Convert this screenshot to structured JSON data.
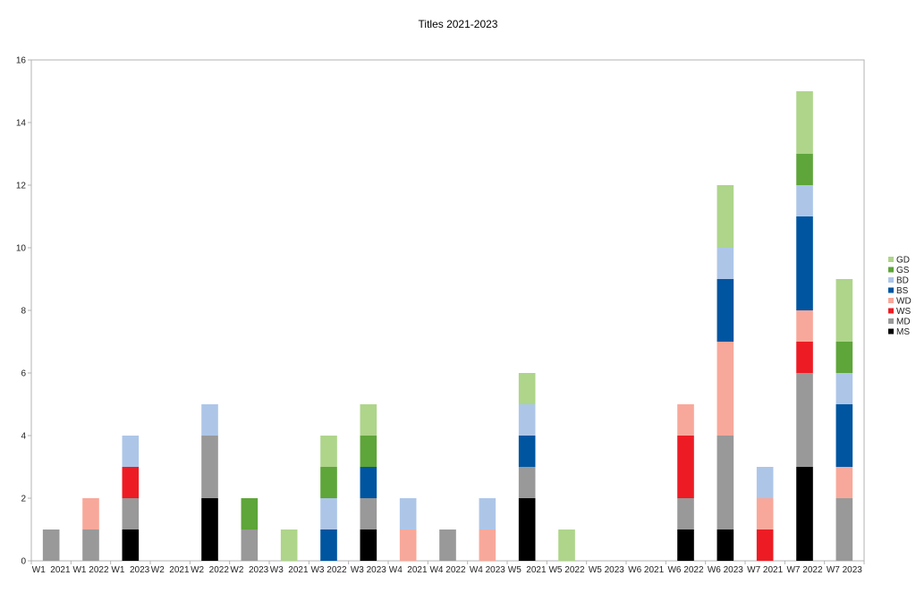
{
  "chart_data": {
    "type": "bar",
    "stacked": true,
    "title": "Titles 2021-2023",
    "xlabel": "",
    "ylabel": "",
    "ylim": [
      0,
      16
    ],
    "yticks": [
      0,
      2,
      4,
      6,
      8,
      10,
      12,
      14,
      16
    ],
    "grid": "horizontal-top-only",
    "legend_position": "right",
    "categories": [
      "W1  2021",
      "W1 2022",
      "W1  2023",
      "W2  2021",
      "W2  2022",
      "W2  2023",
      "W3  2021",
      "W3 2022",
      "W3 2023",
      "W4  2021",
      "W4 2022",
      "W4 2023",
      "W5  2021",
      "W5 2022",
      "W5 2023",
      "W6 2021",
      "W6 2022",
      "W6 2023",
      "W7 2021",
      "W7 2022",
      "W7 2023"
    ],
    "series": [
      {
        "name": "MS",
        "color": "#000000",
        "values": [
          0,
          0,
          1,
          0,
          2,
          0,
          0,
          0,
          1,
          0,
          0,
          0,
          2,
          0,
          0,
          0,
          1,
          1,
          0,
          3,
          0
        ]
      },
      {
        "name": "MD",
        "color": "#999999",
        "values": [
          1,
          1,
          1,
          0,
          2,
          1,
          0,
          0,
          1,
          0,
          1,
          0,
          1,
          0,
          0,
          0,
          1,
          3,
          0,
          3,
          2
        ]
      },
      {
        "name": "WS",
        "color": "#ed1c24",
        "values": [
          0,
          0,
          1,
          0,
          0,
          0,
          0,
          0,
          0,
          0,
          0,
          0,
          0,
          0,
          0,
          0,
          2,
          0,
          1,
          1,
          0
        ]
      },
      {
        "name": "WD",
        "color": "#f8a89a",
        "values": [
          0,
          1,
          0,
          0,
          0,
          0,
          0,
          0,
          0,
          1,
          0,
          1,
          0,
          0,
          0,
          0,
          1,
          3,
          1,
          1,
          1
        ]
      },
      {
        "name": "BS",
        "color": "#0055a0",
        "values": [
          0,
          0,
          0,
          0,
          0,
          0,
          0,
          1,
          1,
          0,
          0,
          0,
          1,
          0,
          0,
          0,
          0,
          2,
          0,
          3,
          2
        ]
      },
      {
        "name": "BD",
        "color": "#adc6e8",
        "values": [
          0,
          0,
          1,
          0,
          1,
          0,
          0,
          1,
          0,
          1,
          0,
          1,
          1,
          0,
          0,
          0,
          0,
          1,
          1,
          1,
          1
        ]
      },
      {
        "name": "GS",
        "color": "#5ea53a",
        "values": [
          0,
          0,
          0,
          0,
          0,
          1,
          0,
          1,
          1,
          0,
          0,
          0,
          0,
          0,
          0,
          0,
          0,
          0,
          0,
          1,
          1
        ]
      },
      {
        "name": "GD",
        "color": "#aed58a",
        "values": [
          0,
          0,
          0,
          0,
          0,
          0,
          1,
          1,
          1,
          0,
          0,
          0,
          1,
          1,
          0,
          0,
          0,
          2,
          0,
          2,
          2
        ]
      }
    ]
  }
}
